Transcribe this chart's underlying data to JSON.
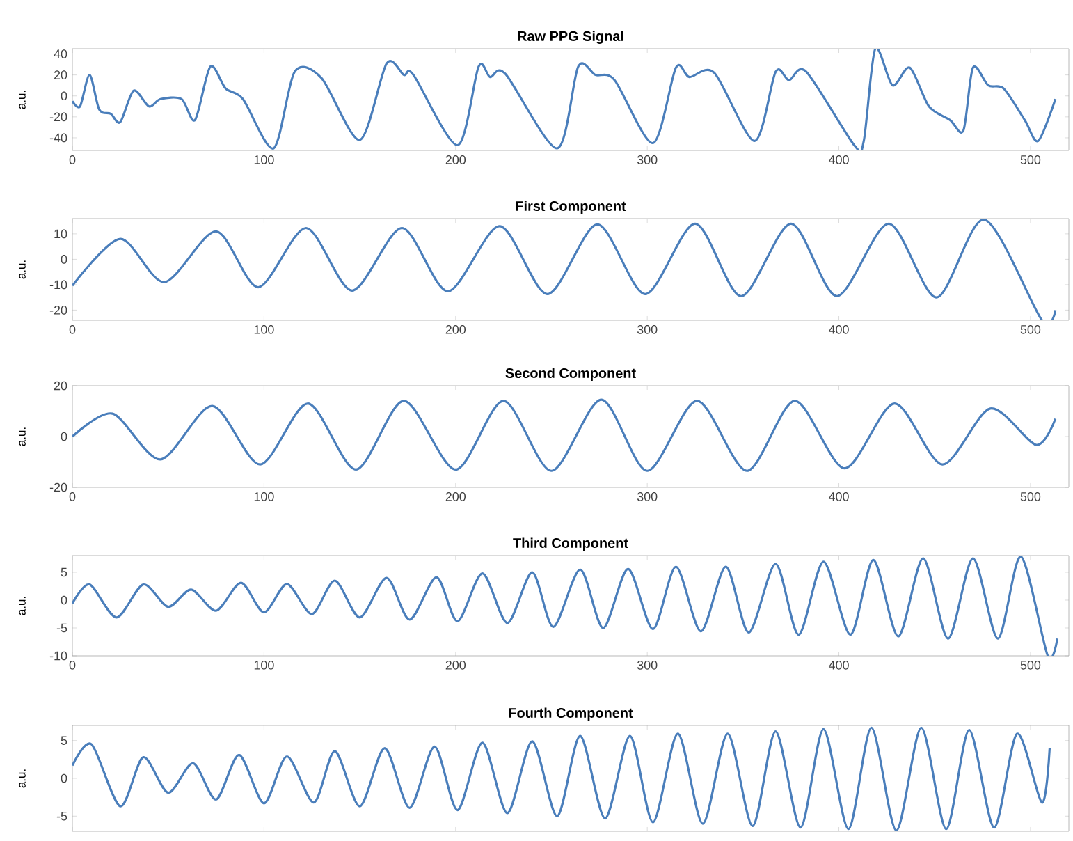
{
  "chart_data": [
    {
      "type": "line",
      "title": "Raw PPG Signal",
      "ylabel": "a.u.",
      "color": "#4a7ebb",
      "xlim": [
        0,
        520
      ],
      "ylim": [
        -52,
        45
      ],
      "xticks": [
        0,
        100,
        200,
        300,
        400,
        500
      ],
      "yticks": [
        -40,
        -20,
        0,
        20,
        40
      ],
      "x": [
        0,
        4,
        9,
        14,
        20,
        25,
        32,
        40,
        46,
        57,
        64,
        72,
        80,
        89,
        105,
        116,
        130,
        150,
        164,
        173,
        178,
        201,
        212,
        218,
        226,
        253,
        264,
        273,
        283,
        303,
        315,
        322,
        335,
        356,
        367,
        374,
        383,
        408,
        413,
        419,
        428,
        437,
        447,
        458,
        465,
        470,
        478,
        486,
        497,
        504,
        513
      ],
      "values": [
        -5,
        -10,
        20,
        -13,
        -17,
        -25,
        5,
        -10,
        -3,
        -3,
        -23,
        28,
        7,
        -3,
        -50,
        23,
        17,
        -42,
        31,
        20,
        20,
        -47,
        28,
        18,
        21,
        -50,
        28,
        20,
        15,
        -45,
        27,
        18,
        22,
        -43,
        23,
        15,
        23,
        -47,
        -43,
        45,
        10,
        27,
        -10,
        -23,
        -33,
        27,
        10,
        7,
        -23,
        -43,
        -3
      ]
    },
    {
      "type": "line",
      "title": "First Component",
      "ylabel": "a.u.",
      "color": "#4a7ebb",
      "xlim": [
        0,
        520
      ],
      "ylim": [
        -24,
        16
      ],
      "xticks": [
        0,
        100,
        200,
        300,
        400,
        500
      ],
      "yticks": [
        -20,
        -10,
        0,
        10
      ],
      "x": [
        0,
        25,
        48,
        75,
        97,
        122,
        146,
        172,
        196,
        223,
        248,
        274,
        299,
        325,
        349,
        375,
        399,
        426,
        451,
        476,
        506,
        513
      ],
      "values": [
        -10.4,
        8,
        -9,
        11,
        -11,
        12.3,
        -12.3,
        12.3,
        -12.6,
        13,
        -13.7,
        13.7,
        -13.7,
        14,
        -14.5,
        14,
        -14.5,
        14,
        -15,
        15.6,
        -24,
        -20
      ]
    },
    {
      "type": "line",
      "title": "Second Component",
      "ylabel": "a.u.",
      "color": "#4a7ebb",
      "xlim": [
        0,
        520
      ],
      "ylim": [
        -20,
        20
      ],
      "xticks": [
        0,
        100,
        200,
        300,
        400,
        500
      ],
      "yticks": [
        -20,
        0,
        20
      ],
      "x": [
        0,
        21,
        46,
        73,
        98,
        123,
        148,
        173,
        200,
        225,
        250,
        276,
        300,
        326,
        352,
        377,
        403,
        429,
        454,
        479,
        503,
        513
      ],
      "values": [
        0,
        9,
        -9,
        12,
        -11,
        13,
        -13,
        14,
        -13,
        14,
        -13.5,
        14.5,
        -13.5,
        14,
        -13.5,
        14,
        -12.5,
        13,
        -11,
        11,
        -3.3,
        7
      ]
    },
    {
      "type": "line",
      "title": "Third Component",
      "ylabel": "a.u.",
      "color": "#4a7ebb",
      "xlim": [
        0,
        520
      ],
      "ylim": [
        -10,
        8
      ],
      "xticks": [
        0,
        100,
        200,
        300,
        400,
        500
      ],
      "yticks": [
        -10,
        -5,
        0,
        5
      ],
      "x": [
        0,
        9,
        23,
        37,
        50,
        62,
        75,
        88,
        100,
        112,
        125,
        137,
        150,
        164,
        176,
        190,
        201,
        214,
        227,
        240,
        251,
        265,
        277,
        290,
        303,
        315,
        328,
        341,
        353,
        367,
        379,
        392,
        406,
        418,
        431,
        444,
        457,
        470,
        483,
        495,
        509,
        514
      ],
      "values": [
        -0.6,
        2.8,
        -3.1,
        2.8,
        -1.2,
        1.9,
        -1.9,
        3.1,
        -2.2,
        2.9,
        -2.5,
        3.5,
        -3.1,
        4,
        -3.5,
        4.1,
        -3.8,
        4.8,
        -4.1,
        5,
        -4.8,
        5.5,
        -5,
        5.6,
        -5.2,
        6,
        -5.6,
        6,
        -5.8,
        6.5,
        -6.2,
        6.9,
        -6.2,
        7.2,
        -6.5,
        7.5,
        -6.9,
        7.5,
        -6.9,
        7.8,
        -10,
        -6.9
      ]
    },
    {
      "type": "line",
      "title": "Fourth Component",
      "ylabel": "a.u.",
      "color": "#4a7ebb",
      "xlim": [
        0,
        520
      ],
      "ylim": [
        -7,
        7
      ],
      "xticks": [
        0,
        100,
        200,
        300,
        400,
        500
      ],
      "yticks": [
        -5,
        0,
        5
      ],
      "tick_labels": "y",
      "x": [
        0,
        10,
        25,
        37,
        50,
        63,
        75,
        87,
        100,
        112,
        126,
        137,
        150,
        163,
        176,
        189,
        201,
        214,
        227,
        240,
        253,
        265,
        278,
        291,
        303,
        316,
        329,
        342,
        355,
        367,
        380,
        392,
        405,
        417,
        430,
        443,
        456,
        468,
        481,
        493,
        506,
        510
      ],
      "values": [
        1.7,
        4.5,
        -3.7,
        2.8,
        -1.9,
        2,
        -2.8,
        3.1,
        -3.3,
        2.9,
        -3.2,
        3.6,
        -3.7,
        4,
        -3.9,
        4.2,
        -4.2,
        4.7,
        -4.6,
        4.9,
        -5,
        5.6,
        -5.3,
        5.6,
        -5.8,
        5.9,
        -6,
        5.9,
        -6.3,
        6.2,
        -6.5,
        6.5,
        -6.7,
        6.7,
        -6.9,
        6.7,
        -6.7,
        6.4,
        -6.5,
        5.9,
        -3.2,
        4
      ]
    }
  ]
}
